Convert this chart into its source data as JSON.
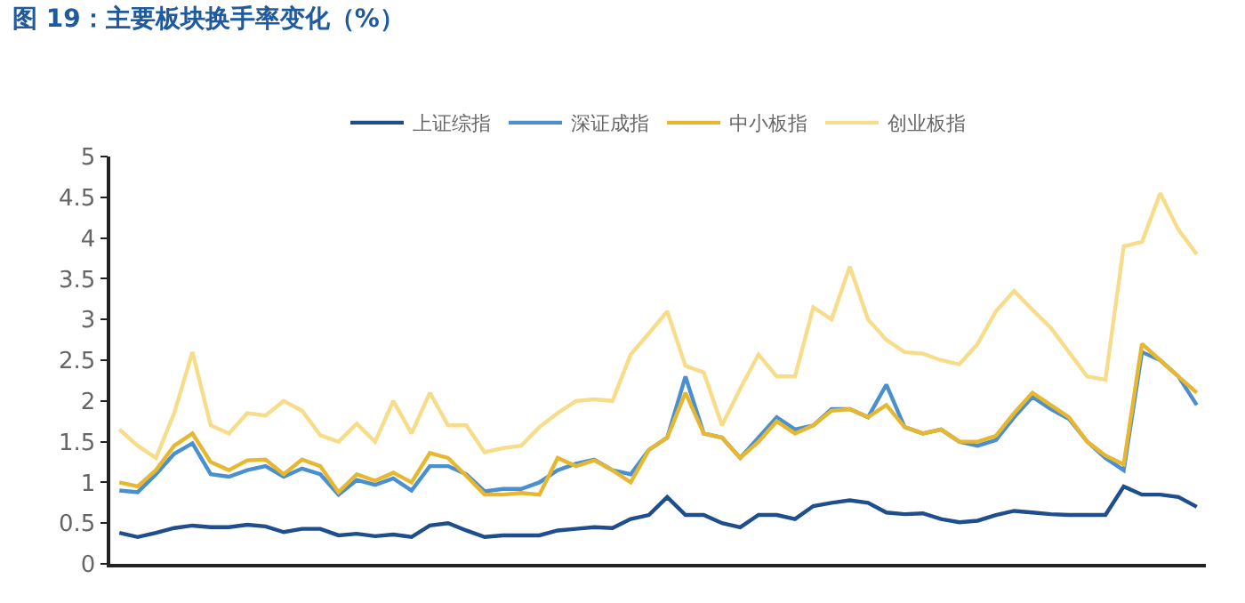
{
  "chart_data": {
    "type": "line",
    "title": "图 19：主要板块换手率变化（%）",
    "legend": "top",
    "categories": [
      null,
      null,
      null,
      null,
      null,
      null,
      null,
      null,
      null,
      null,
      null,
      null,
      null,
      null,
      null,
      null,
      null,
      null,
      null,
      null,
      null,
      null,
      null,
      null,
      null,
      null,
      null,
      null,
      null,
      null,
      null,
      null,
      null,
      null,
      null,
      null,
      null,
      null,
      null,
      null,
      null,
      null,
      null,
      null,
      null,
      null,
      null,
      null,
      null,
      null,
      null,
      null,
      null,
      null,
      null,
      null,
      null,
      null,
      null,
      null
    ],
    "ylim": [
      0,
      5
    ],
    "yticks": [
      0,
      0.5,
      1,
      1.5,
      2,
      2.5,
      3,
      3.5,
      4,
      4.5,
      5
    ],
    "series": [
      {
        "name": "上证综指",
        "color": "#1f4e8c",
        "values": [
          0.38,
          0.33,
          0.38,
          0.44,
          0.47,
          0.45,
          0.45,
          0.48,
          0.46,
          0.39,
          0.43,
          0.43,
          0.35,
          0.37,
          0.34,
          0.36,
          0.33,
          0.47,
          0.5,
          0.41,
          0.33,
          0.35,
          0.35,
          0.35,
          0.41,
          0.43,
          0.45,
          0.44,
          0.55,
          0.6,
          0.82,
          0.6,
          0.6,
          0.5,
          0.45,
          0.6,
          0.6,
          0.55,
          0.71,
          0.75,
          0.78,
          0.75,
          0.63,
          0.61,
          0.62,
          0.55,
          0.51,
          0.53,
          0.6,
          0.65,
          0.63,
          0.61,
          0.6,
          0.6,
          0.6,
          0.95,
          0.85,
          0.85,
          0.82,
          0.7
        ]
      },
      {
        "name": "深证成指",
        "color": "#4a90d0",
        "values": [
          0.9,
          0.88,
          1.1,
          1.35,
          1.48,
          1.1,
          1.07,
          1.15,
          1.2,
          1.07,
          1.17,
          1.1,
          0.85,
          1.03,
          0.97,
          1.05,
          0.9,
          1.2,
          1.2,
          1.1,
          0.89,
          0.92,
          0.92,
          1.0,
          1.15,
          1.23,
          1.28,
          1.15,
          1.1,
          1.4,
          1.55,
          2.3,
          1.6,
          1.55,
          1.3,
          1.55,
          1.8,
          1.65,
          1.7,
          1.9,
          1.9,
          1.8,
          2.2,
          1.68,
          1.6,
          1.65,
          1.5,
          1.45,
          1.52,
          1.8,
          2.05,
          1.9,
          1.78,
          1.5,
          1.3,
          1.15,
          2.6,
          2.5,
          2.3,
          1.95
        ]
      },
      {
        "name": "中小板指",
        "color": "#e8b730",
        "values": [
          1.0,
          0.95,
          1.15,
          1.45,
          1.6,
          1.25,
          1.15,
          1.27,
          1.28,
          1.1,
          1.28,
          1.2,
          0.88,
          1.1,
          1.02,
          1.12,
          1.0,
          1.36,
          1.3,
          1.08,
          0.85,
          0.85,
          0.87,
          0.85,
          1.3,
          1.2,
          1.27,
          1.15,
          1.0,
          1.4,
          1.55,
          2.1,
          1.6,
          1.55,
          1.3,
          1.5,
          1.75,
          1.6,
          1.7,
          1.88,
          1.9,
          1.8,
          1.95,
          1.68,
          1.6,
          1.65,
          1.5,
          1.5,
          1.57,
          1.85,
          2.1,
          1.95,
          1.8,
          1.5,
          1.33,
          1.22,
          2.7,
          2.5,
          2.3,
          2.1
        ]
      },
      {
        "name": "创业板指",
        "color": "#f7dc8a",
        "values": [
          1.65,
          1.45,
          1.3,
          1.85,
          2.6,
          1.7,
          1.6,
          1.85,
          1.82,
          2.0,
          1.88,
          1.58,
          1.5,
          1.72,
          1.5,
          2.0,
          1.6,
          2.1,
          1.7,
          1.7,
          1.37,
          1.42,
          1.45,
          1.68,
          1.85,
          2.0,
          2.02,
          2.0,
          2.57,
          2.83,
          3.1,
          2.43,
          2.35,
          1.7,
          2.15,
          2.57,
          2.3,
          2.3,
          3.15,
          3.0,
          3.65,
          3.0,
          2.75,
          2.6,
          2.58,
          2.5,
          2.45,
          2.7,
          3.1,
          3.35,
          3.12,
          2.9,
          2.6,
          2.3,
          2.26,
          3.9,
          3.95,
          4.55,
          4.1,
          3.8
        ]
      }
    ]
  }
}
